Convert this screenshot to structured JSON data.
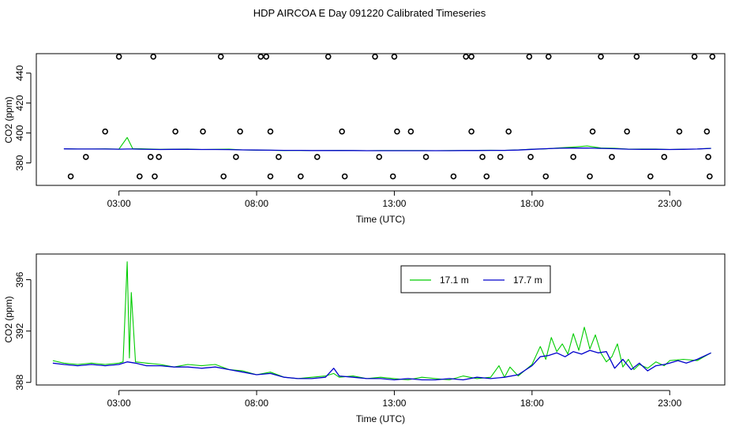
{
  "title": "HDP AIRCOA E  Day 091220  Calibrated Timeseries",
  "chart_data": [
    {
      "type": "scatter",
      "xlabel": "Time (UTC)",
      "ylabel": "CO2 (ppm)",
      "xlim": [
        0.0,
        25.0
      ],
      "ylim": [
        365.0,
        453.0
      ],
      "x_ticks": [
        3,
        8,
        13,
        18,
        23
      ],
      "x_tick_labels": [
        "03:00",
        "08:00",
        "13:00",
        "18:00",
        "23:00"
      ],
      "y_ticks": [
        380,
        400,
        420,
        440
      ],
      "y_tick_labels": [
        "380",
        "400",
        "420",
        "440"
      ],
      "points_x": [
        1.25,
        1.8,
        2.5,
        3.0,
        3.75,
        4.15,
        4.45,
        5.05,
        4.3,
        4.25,
        6.05,
        6.7,
        6.8,
        7.25,
        7.4,
        8.35,
        8.5,
        8.5,
        8.15,
        8.8,
        9.6,
        10.2,
        10.6,
        11.1,
        11.2,
        12.3,
        12.45,
        12.95,
        13.0,
        13.1,
        13.6,
        14.15,
        15.15,
        15.6,
        15.8,
        15.8,
        16.2,
        16.35,
        16.85,
        17.15,
        17.9,
        17.95,
        18.5,
        18.6,
        19.5,
        20.1,
        20.2,
        20.5,
        20.9,
        21.45,
        21.8,
        22.3,
        22.8,
        23.35,
        23.9,
        24.35,
        24.4,
        24.45,
        24.55
      ],
      "points_y": [
        371,
        384,
        401,
        451,
        371,
        384,
        384,
        401,
        371,
        451,
        401,
        451,
        371,
        384,
        401,
        451,
        401,
        371,
        451,
        384,
        371,
        384,
        451,
        401,
        371,
        451,
        384,
        371,
        451,
        401,
        401,
        384,
        371,
        451,
        401,
        451,
        384,
        371,
        384,
        401,
        451,
        384,
        371,
        451,
        384,
        371,
        401,
        451,
        384,
        401,
        451,
        371,
        384,
        401,
        451,
        401,
        384,
        371,
        451
      ],
      "series": [
        {
          "name": "17.1 m",
          "color": "#00cc00",
          "x": [
            1.0,
            1.5,
            2.0,
            2.5,
            3.0,
            3.3,
            3.5,
            3.8,
            4.5,
            5.0,
            5.5,
            6.0,
            6.5,
            7.0,
            7.5,
            8.0,
            8.5,
            9.0,
            9.5,
            10.0,
            10.5,
            11.0,
            11.5,
            12.0,
            12.5,
            13.0,
            13.5,
            14.0,
            14.5,
            15.0,
            15.5,
            16.0,
            16.5,
            17.0,
            17.5,
            18.0,
            18.5,
            19.0,
            19.5,
            20.0,
            20.5,
            21.0,
            21.5,
            22.0,
            22.5,
            23.0,
            23.5,
            24.0,
            24.5
          ],
          "y": [
            389.5,
            389.3,
            389.3,
            389.4,
            389.2,
            397.0,
            389.5,
            389.5,
            389.1,
            389.2,
            389.3,
            389.0,
            389.1,
            389.2,
            388.7,
            388.5,
            388.5,
            388.3,
            388.4,
            388.2,
            388.3,
            388.4,
            388.3,
            388.2,
            388.3,
            388.3,
            388.3,
            388.3,
            388.2,
            388.3,
            388.3,
            388.4,
            388.5,
            388.4,
            388.7,
            389.2,
            389.4,
            390.1,
            390.6,
            391.3,
            390.0,
            389.8,
            389.2,
            389.3,
            389.3,
            389.0,
            389.2,
            389.3,
            389.8
          ]
        },
        {
          "name": "17.7 m",
          "color": "#0000cc",
          "x": [
            1.0,
            1.5,
            2.0,
            2.5,
            3.0,
            3.3,
            3.5,
            3.8,
            4.5,
            5.0,
            5.5,
            6.0,
            6.5,
            7.0,
            7.5,
            8.0,
            8.5,
            9.0,
            9.5,
            10.0,
            10.5,
            11.0,
            11.5,
            12.0,
            12.5,
            13.0,
            13.5,
            14.0,
            14.5,
            15.0,
            15.5,
            16.0,
            16.5,
            17.0,
            17.5,
            18.0,
            18.5,
            19.0,
            19.5,
            20.0,
            20.5,
            21.0,
            21.5,
            22.0,
            22.5,
            23.0,
            23.5,
            24.0,
            24.5
          ],
          "y": [
            389.4,
            389.3,
            389.3,
            389.3,
            389.2,
            389.3,
            389.3,
            389.2,
            389.0,
            389.1,
            389.1,
            389.0,
            389.0,
            388.9,
            388.7,
            388.6,
            388.5,
            388.4,
            388.4,
            388.3,
            388.3,
            388.3,
            388.3,
            388.2,
            388.2,
            388.2,
            388.2,
            388.2,
            388.2,
            388.2,
            388.3,
            388.3,
            388.4,
            388.4,
            388.6,
            389.1,
            389.5,
            389.8,
            389.9,
            390.0,
            389.7,
            389.5,
            389.2,
            389.1,
            389.1,
            389.0,
            389.1,
            389.3,
            389.7
          ]
        }
      ]
    },
    {
      "type": "line",
      "xlabel": "Time (UTC)",
      "ylabel": "CO2 (ppm)",
      "xlim": [
        0.0,
        25.0
      ],
      "ylim": [
        387.8,
        398.0
      ],
      "x_ticks": [
        3,
        8,
        13,
        18,
        23
      ],
      "x_tick_labels": [
        "03:00",
        "08:00",
        "13:00",
        "18:00",
        "23:00"
      ],
      "y_ticks": [
        388,
        392,
        396
      ],
      "y_tick_labels": [
        "388",
        "392",
        "396"
      ],
      "legend": "top-center",
      "series": [
        {
          "name": "17.1 m",
          "color": "#00cc00",
          "x": [
            0.6,
            1.0,
            1.5,
            2.0,
            2.5,
            3.0,
            3.15,
            3.3,
            3.38,
            3.45,
            3.6,
            4.0,
            4.5,
            5.0,
            5.5,
            6.0,
            6.5,
            7.0,
            7.5,
            8.0,
            8.5,
            9.0,
            9.5,
            10.0,
            10.5,
            10.8,
            11.0,
            11.5,
            12.0,
            12.5,
            13.0,
            13.5,
            14.0,
            14.5,
            15.0,
            15.5,
            16.0,
            16.5,
            16.8,
            17.0,
            17.2,
            17.5,
            18.0,
            18.3,
            18.5,
            18.7,
            18.9,
            19.1,
            19.3,
            19.5,
            19.7,
            19.9,
            20.1,
            20.3,
            20.5,
            20.7,
            20.9,
            21.1,
            21.3,
            21.5,
            21.7,
            21.9,
            22.2,
            22.5,
            22.8,
            23.0,
            23.5,
            24.0,
            24.5
          ],
          "y": [
            389.7,
            389.5,
            389.4,
            389.5,
            389.4,
            389.5,
            389.6,
            397.4,
            389.9,
            395.0,
            389.6,
            389.5,
            389.4,
            389.2,
            389.4,
            389.3,
            389.4,
            389.0,
            388.9,
            388.6,
            388.8,
            388.4,
            388.3,
            388.4,
            388.5,
            388.7,
            388.4,
            388.5,
            388.3,
            388.4,
            388.3,
            388.2,
            388.4,
            388.3,
            388.2,
            388.5,
            388.3,
            388.4,
            389.3,
            388.4,
            389.2,
            388.5,
            389.4,
            390.8,
            389.8,
            391.5,
            390.4,
            391.0,
            390.2,
            391.8,
            390.5,
            392.3,
            390.6,
            391.7,
            390.3,
            389.6,
            390.0,
            391.0,
            389.2,
            389.8,
            389.0,
            389.4,
            389.1,
            389.6,
            389.3,
            389.7,
            389.8,
            389.7,
            390.3
          ]
        },
        {
          "name": "17.7 m",
          "color": "#0000cc",
          "x": [
            0.6,
            1.0,
            1.5,
            2.0,
            2.5,
            3.0,
            3.3,
            3.6,
            4.0,
            4.5,
            5.0,
            5.5,
            6.0,
            6.5,
            7.0,
            7.5,
            8.0,
            8.5,
            9.0,
            9.5,
            10.0,
            10.5,
            10.8,
            11.0,
            11.5,
            12.0,
            12.5,
            13.0,
            13.5,
            14.0,
            14.5,
            15.0,
            15.5,
            16.0,
            16.5,
            17.0,
            17.5,
            18.0,
            18.3,
            18.6,
            18.9,
            19.2,
            19.5,
            19.8,
            20.1,
            20.4,
            20.7,
            21.0,
            21.3,
            21.6,
            21.9,
            22.2,
            22.5,
            22.8,
            23.0,
            23.3,
            23.6,
            24.0,
            24.5
          ],
          "y": [
            389.5,
            389.4,
            389.3,
            389.4,
            389.3,
            389.4,
            389.6,
            389.5,
            389.3,
            389.3,
            389.2,
            389.2,
            389.1,
            389.2,
            389.0,
            388.8,
            388.6,
            388.7,
            388.4,
            388.3,
            388.3,
            388.4,
            389.1,
            388.5,
            388.4,
            388.3,
            388.3,
            388.2,
            388.3,
            388.2,
            388.2,
            388.3,
            388.2,
            388.4,
            388.3,
            388.4,
            388.6,
            389.3,
            390.0,
            390.1,
            390.3,
            390.0,
            390.4,
            390.2,
            390.5,
            390.3,
            390.4,
            389.1,
            389.8,
            389.0,
            389.5,
            388.9,
            389.3,
            389.4,
            389.5,
            389.7,
            389.5,
            389.8,
            390.3
          ]
        }
      ]
    }
  ]
}
